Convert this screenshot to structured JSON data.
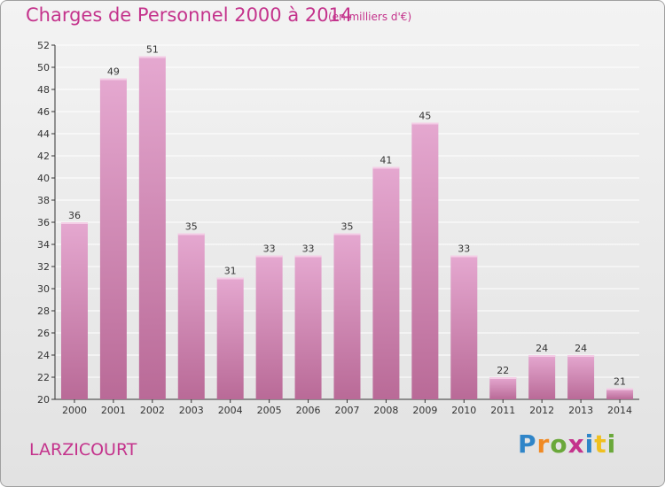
{
  "header": {
    "title": "Charges de Personnel 2000 à 2014",
    "subtitle": "(en milliers d'€)"
  },
  "footer": {
    "place": "LARZICOURT",
    "logo_letters": [
      "P",
      "r",
      "o",
      "x",
      "i",
      "t",
      "i"
    ]
  },
  "colors": {
    "title": "#c4338c",
    "bar_top": "#e5a8d0",
    "bar_bottom": "#b96a97",
    "grid": "#ffffff",
    "axis": "#333333"
  },
  "chart_data": {
    "type": "bar",
    "title": "Charges de Personnel 2000 à 2014",
    "subtitle": "(en milliers d'€)",
    "xlabel": "",
    "ylabel": "",
    "categories": [
      "2000",
      "2001",
      "2002",
      "2003",
      "2004",
      "2005",
      "2006",
      "2007",
      "2008",
      "2009",
      "2010",
      "2011",
      "2012",
      "2013",
      "2014"
    ],
    "values": [
      36,
      49,
      51,
      35,
      31,
      33,
      33,
      35,
      41,
      45,
      33,
      22,
      24,
      24,
      21
    ],
    "ylim": [
      20,
      52
    ],
    "yticks": [
      20,
      22,
      24,
      26,
      28,
      30,
      32,
      34,
      36,
      38,
      40,
      42,
      44,
      46,
      48,
      50,
      52
    ],
    "grid": true,
    "legend": "none"
  }
}
